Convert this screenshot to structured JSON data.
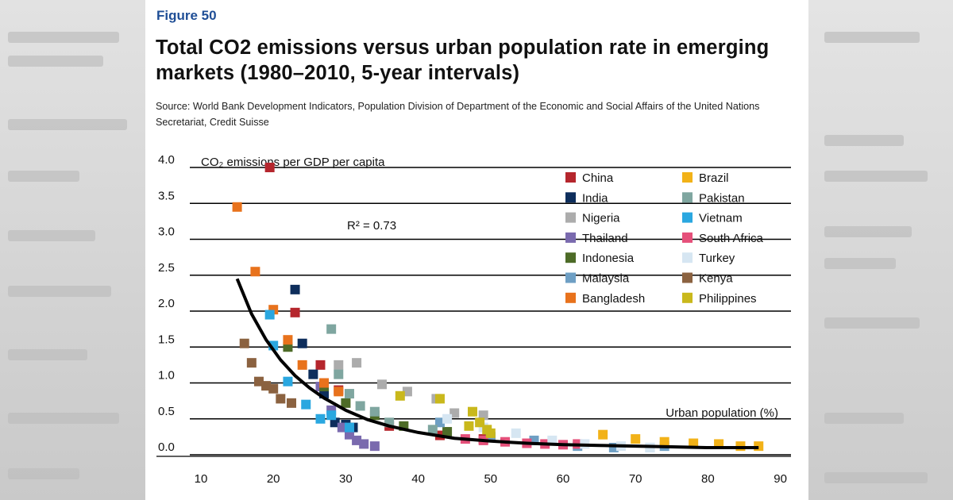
{
  "figure_label": "Figure 50",
  "title": "Total CO2 emissions versus urban population rate in emerging markets (1980–2010, 5-year intervals)",
  "source": "Source: World Bank Development Indicators, Population Division of Department of the Economic and Social Affairs of the United Nations Secretariat, Credit Suisse",
  "chart_data": {
    "type": "scatter",
    "ylabel": "CO₂ emissions per GDP per capita",
    "xlabel": "Urban population (%)",
    "annotation": "R² = 0.73",
    "xlim": [
      5,
      91
    ],
    "ylim": [
      0,
      4
    ],
    "xticks": [
      10,
      20,
      30,
      40,
      50,
      60,
      70,
      80,
      90
    ],
    "yticks": [
      "0.0",
      "0.5",
      "1.0",
      "1.5",
      "2.0",
      "2.5",
      "3.0",
      "3.5",
      "4.0"
    ],
    "grid": "horizontal",
    "legend_position": "top-right",
    "trendline": {
      "label": "fit",
      "x": [
        15,
        17,
        19,
        21,
        23,
        25,
        27,
        30,
        33,
        36,
        40,
        45,
        50,
        55,
        60,
        65,
        70,
        75,
        80,
        87
      ],
      "y": [
        2.45,
        1.96,
        1.6,
        1.32,
        1.1,
        0.93,
        0.79,
        0.62,
        0.49,
        0.4,
        0.31,
        0.23,
        0.19,
        0.16,
        0.14,
        0.13,
        0.12,
        0.11,
        0.1,
        0.1
      ]
    },
    "series": [
      {
        "name": "China",
        "color": "#b5262d",
        "x": [
          19.5,
          23,
          26.5,
          29,
          36,
          43,
          49
        ],
        "y": [
          4.0,
          1.98,
          1.25,
          0.9,
          0.4,
          0.27,
          0.22
        ]
      },
      {
        "name": "India",
        "color": "#0e2e5c",
        "x": [
          23,
          24,
          25.5,
          27,
          28.5,
          30,
          31
        ],
        "y": [
          2.3,
          1.55,
          1.12,
          0.85,
          0.45,
          0.42,
          0.38
        ]
      },
      {
        "name": "Nigeria",
        "color": "#acacac",
        "x": [
          29,
          31.5,
          35,
          38.5,
          42.5,
          45,
          49
        ],
        "y": [
          1.25,
          1.28,
          0.98,
          0.88,
          0.78,
          0.58,
          0.55
        ]
      },
      {
        "name": "Thailand",
        "color": "#7a6aae",
        "x": [
          26.5,
          28,
          29.5,
          30.5,
          31.5,
          32.5,
          34
        ],
        "y": [
          0.95,
          0.62,
          0.38,
          0.28,
          0.2,
          0.15,
          0.12
        ]
      },
      {
        "name": "Indonesia",
        "color": "#4d6b27",
        "x": [
          22,
          27,
          30,
          34,
          38,
          44,
          50
        ],
        "y": [
          1.5,
          0.95,
          0.72,
          0.55,
          0.4,
          0.32,
          0.25
        ]
      },
      {
        "name": "Malaysia",
        "color": "#6e9fc4",
        "x": [
          43,
          50,
          56,
          62,
          67,
          72,
          74
        ],
        "y": [
          0.45,
          0.25,
          0.2,
          0.12,
          0.1,
          0.1,
          0.12
        ]
      },
      {
        "name": "Bangladesh",
        "color": "#e8721c",
        "x": [
          15,
          17.5,
          20,
          22,
          24,
          27,
          29
        ],
        "y": [
          3.45,
          2.55,
          2.02,
          1.6,
          1.25,
          1.0,
          0.88
        ]
      },
      {
        "name": "Brazil",
        "color": "#f2b218",
        "x": [
          65.5,
          70,
          74,
          78,
          81.5,
          84.5,
          87
        ],
        "y": [
          0.28,
          0.22,
          0.18,
          0.16,
          0.15,
          0.12,
          0.12
        ]
      },
      {
        "name": "Pakistan",
        "color": "#7fa6a0",
        "x": [
          28,
          29,
          30.5,
          32,
          34,
          36,
          42
        ],
        "y": [
          1.75,
          1.12,
          0.85,
          0.68,
          0.6,
          0.45,
          0.35
        ]
      },
      {
        "name": "Vietnam",
        "color": "#2aa7e0",
        "x": [
          19.5,
          20,
          22,
          24.5,
          26.5,
          28,
          30.5
        ],
        "y": [
          1.95,
          1.52,
          1.02,
          0.7,
          0.5,
          0.55,
          0.38
        ]
      },
      {
        "name": "South Africa",
        "color": "#e5507a",
        "x": [
          46.5,
          49,
          52,
          55,
          57.5,
          60,
          62
        ],
        "y": [
          0.22,
          0.2,
          0.18,
          0.16,
          0.15,
          0.14,
          0.15
        ]
      },
      {
        "name": "Turkey",
        "color": "#d6e6f2",
        "x": [
          44,
          49,
          53.5,
          58.5,
          63,
          68,
          72
        ],
        "y": [
          0.5,
          0.38,
          0.3,
          0.2,
          0.15,
          0.12,
          0.1
        ]
      },
      {
        "name": "Kenya",
        "color": "#8b6240",
        "x": [
          16,
          17,
          18,
          19,
          20,
          21,
          22.5
        ],
        "y": [
          1.55,
          1.28,
          1.02,
          0.96,
          0.92,
          0.78,
          0.72
        ]
      },
      {
        "name": "Philippines",
        "color": "#c9b81c",
        "x": [
          37.5,
          43,
          47.5,
          48.5,
          49.5,
          50,
          47
        ],
        "y": [
          0.82,
          0.78,
          0.6,
          0.45,
          0.35,
          0.3,
          0.4
        ]
      }
    ]
  }
}
